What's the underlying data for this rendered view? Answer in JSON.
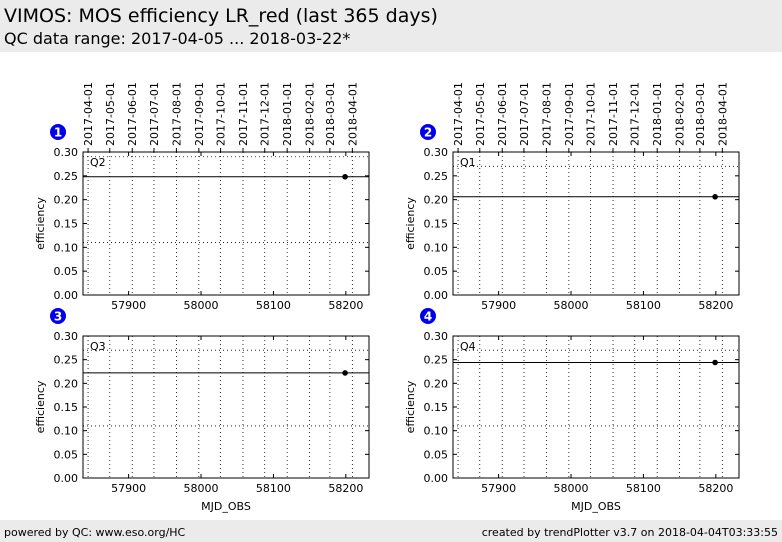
{
  "header": {
    "title": "VIMOS: MOS efficiency LR_red (last 365 days)",
    "subtitle": "QC data range: 2017-04-05 ... 2018-03-22*"
  },
  "footer": {
    "left": "powered by QC: www.eso.org/HC",
    "right": "created by trendPlotter v3.7 on 2018-04-04T03:33:55"
  },
  "colors": {
    "badge": "#0000ee",
    "line": "#000000",
    "background_band": "#ebebeb"
  },
  "chart_data": [
    {
      "type": "scatter",
      "badge": "1",
      "panel_label": "Q2",
      "xlabel": "",
      "ylabel": "efficiency",
      "xlim": [
        57837,
        58232
      ],
      "ylim": [
        0,
        0.3
      ],
      "xticks": [
        57900,
        58000,
        58100,
        58200
      ],
      "yticks": [
        "0.00",
        "0.05",
        "0.10",
        "0.15",
        "0.20",
        "0.25",
        "0.30"
      ],
      "date_ticks": [
        "2017-04-01",
        "2017-05-01",
        "2017-06-01",
        "2017-07-01",
        "2017-08-01",
        "2017-09-01",
        "2017-10-01",
        "2017-11-01",
        "2017-12-01",
        "2018-01-01",
        "2018-02-01",
        "2018-03-01",
        "2018-04-01"
      ],
      "date_tick_mjd": [
        57844,
        57874,
        57905,
        57935,
        57966,
        57997,
        58027,
        58058,
        58088,
        58119,
        58150,
        58178,
        58209
      ],
      "points": [
        {
          "x": 58199,
          "y": 0.248
        }
      ],
      "reference_line": 0.248,
      "threshold_lines": [
        0.29,
        0.11
      ]
    },
    {
      "type": "scatter",
      "badge": "2",
      "panel_label": "Q1",
      "xlabel": "",
      "ylabel": "efficiency",
      "xlim": [
        57837,
        58232
      ],
      "ylim": [
        0,
        0.3
      ],
      "xticks": [
        57900,
        58000,
        58100,
        58200
      ],
      "yticks": [
        "0.00",
        "0.05",
        "0.10",
        "0.15",
        "0.20",
        "0.25",
        "0.30"
      ],
      "date_ticks": [
        "2017-04-01",
        "2017-05-01",
        "2017-06-01",
        "2017-07-01",
        "2017-08-01",
        "2017-09-01",
        "2017-10-01",
        "2017-11-01",
        "2017-12-01",
        "2018-01-01",
        "2018-02-01",
        "2018-03-01",
        "2018-04-01"
      ],
      "date_tick_mjd": [
        57844,
        57874,
        57905,
        57935,
        57966,
        57997,
        58027,
        58058,
        58088,
        58119,
        58150,
        58178,
        58209
      ],
      "points": [
        {
          "x": 58199,
          "y": 0.206
        }
      ],
      "reference_line": 0.206,
      "threshold_lines": [
        0.27
      ]
    },
    {
      "type": "scatter",
      "badge": "3",
      "panel_label": "Q3",
      "xlabel": "MJD_OBS",
      "ylabel": "efficiency",
      "xlim": [
        57837,
        58232
      ],
      "ylim": [
        0,
        0.3
      ],
      "xticks": [
        57900,
        58000,
        58100,
        58200
      ],
      "yticks": [
        "0.00",
        "0.05",
        "0.10",
        "0.15",
        "0.20",
        "0.25",
        "0.30"
      ],
      "date_ticks": [],
      "date_tick_mjd": [
        57844,
        57874,
        57905,
        57935,
        57966,
        57997,
        58027,
        58058,
        58088,
        58119,
        58150,
        58178,
        58209
      ],
      "points": [
        {
          "x": 58199,
          "y": 0.222
        }
      ],
      "reference_line": 0.222,
      "threshold_lines": [
        0.27,
        0.11
      ]
    },
    {
      "type": "scatter",
      "badge": "4",
      "panel_label": "Q4",
      "xlabel": "MJD_OBS",
      "ylabel": "efficiency",
      "xlim": [
        57837,
        58232
      ],
      "ylim": [
        0,
        0.3
      ],
      "xticks": [
        57900,
        58000,
        58100,
        58200
      ],
      "yticks": [
        "0.00",
        "0.05",
        "0.10",
        "0.15",
        "0.20",
        "0.25",
        "0.30"
      ],
      "date_ticks": [],
      "date_tick_mjd": [
        57844,
        57874,
        57905,
        57935,
        57966,
        57997,
        58027,
        58058,
        58088,
        58119,
        58150,
        58178,
        58209
      ],
      "points": [
        {
          "x": 58199,
          "y": 0.244
        }
      ],
      "reference_line": 0.244,
      "threshold_lines": [
        0.27,
        0.11
      ]
    }
  ]
}
